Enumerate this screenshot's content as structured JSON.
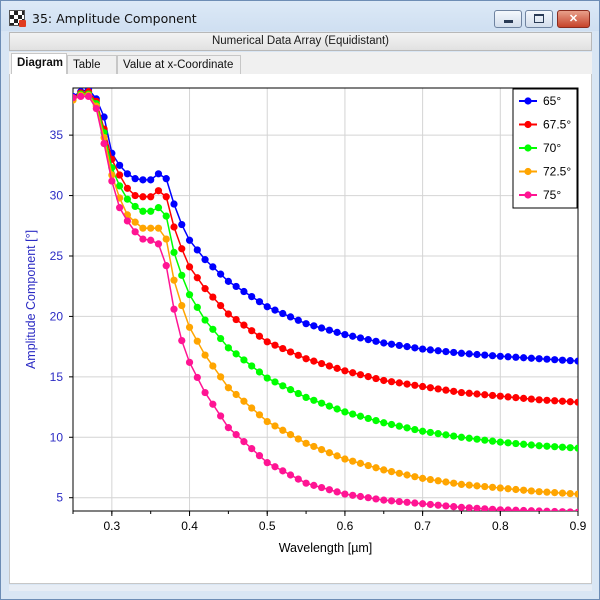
{
  "window": {
    "title": "35: Amplitude Component",
    "controls": {
      "minimize": "minimize",
      "maximize": "maximize",
      "close": "✕"
    }
  },
  "subheader": "Numerical Data Array (Equidistant)",
  "tabs": [
    {
      "label": "Diagram",
      "active": true
    },
    {
      "label": "Table",
      "active": false
    },
    {
      "label": "Value at x-Coordinate",
      "active": false
    }
  ],
  "chart_data": {
    "type": "line",
    "xlabel": "Wavelength [µm]",
    "ylabel": "Amplitude Component [°]",
    "xlim": [
      0.25,
      0.9
    ],
    "ylim": [
      3.9,
      38.9
    ],
    "xticks": [
      0.3,
      0.4,
      0.5,
      0.6,
      0.7,
      0.8,
      0.9
    ],
    "yticks": [
      5,
      10,
      15,
      20,
      25,
      30,
      35
    ],
    "grid": true,
    "legend_position": "top-right",
    "series": [
      {
        "name": "65°",
        "color": "#0000ff",
        "x": [
          0.25,
          0.26,
          0.27,
          0.28,
          0.29,
          0.3,
          0.31,
          0.32,
          0.33,
          0.34,
          0.35,
          0.36,
          0.37,
          0.38,
          0.39,
          0.4,
          0.42,
          0.45,
          0.5,
          0.55,
          0.6,
          0.65,
          0.7,
          0.75,
          0.8,
          0.85,
          0.9
        ],
        "y": [
          38.2,
          38.6,
          38.8,
          38.0,
          36.5,
          33.5,
          32.5,
          31.8,
          31.4,
          31.3,
          31.3,
          31.8,
          31.4,
          29.3,
          27.6,
          26.3,
          24.7,
          22.9,
          20.8,
          19.4,
          18.5,
          17.8,
          17.3,
          16.95,
          16.7,
          16.5,
          16.3
        ]
      },
      {
        "name": "67.5°",
        "color": "#ff0000",
        "x": [
          0.25,
          0.26,
          0.27,
          0.28,
          0.29,
          0.3,
          0.31,
          0.32,
          0.33,
          0.34,
          0.35,
          0.36,
          0.37,
          0.38,
          0.39,
          0.4,
          0.42,
          0.45,
          0.5,
          0.55,
          0.6,
          0.65,
          0.7,
          0.75,
          0.8,
          0.85,
          0.9
        ],
        "y": [
          38.1,
          38.5,
          38.6,
          37.8,
          35.5,
          33.0,
          31.7,
          30.6,
          30.0,
          29.9,
          29.9,
          30.4,
          29.9,
          27.4,
          25.6,
          24.1,
          22.3,
          20.2,
          17.9,
          16.5,
          15.5,
          14.7,
          14.2,
          13.7,
          13.4,
          13.1,
          12.9
        ]
      },
      {
        "name": "70°",
        "color": "#00ff00",
        "x": [
          0.25,
          0.26,
          0.27,
          0.28,
          0.29,
          0.3,
          0.31,
          0.32,
          0.33,
          0.34,
          0.35,
          0.36,
          0.37,
          0.38,
          0.39,
          0.4,
          0.42,
          0.45,
          0.5,
          0.55,
          0.6,
          0.65,
          0.7,
          0.75,
          0.8,
          0.85,
          0.9
        ],
        "y": [
          38.0,
          38.4,
          38.4,
          37.6,
          35.2,
          32.3,
          30.8,
          29.7,
          29.1,
          28.7,
          28.7,
          29.0,
          28.3,
          25.3,
          23.4,
          21.8,
          19.7,
          17.4,
          14.9,
          13.3,
          12.1,
          11.2,
          10.5,
          10.0,
          9.6,
          9.3,
          9.1
        ]
      },
      {
        "name": "72.5°",
        "color": "#ffa500",
        "x": [
          0.25,
          0.26,
          0.27,
          0.28,
          0.29,
          0.3,
          0.31,
          0.32,
          0.33,
          0.34,
          0.35,
          0.36,
          0.37,
          0.38,
          0.39,
          0.4,
          0.42,
          0.45,
          0.5,
          0.55,
          0.6,
          0.65,
          0.7,
          0.75,
          0.8,
          0.85,
          0.9
        ],
        "y": [
          37.9,
          38.3,
          38.3,
          37.4,
          34.8,
          31.7,
          29.8,
          28.4,
          27.8,
          27.3,
          27.3,
          27.3,
          26.4,
          23.0,
          20.9,
          19.1,
          16.8,
          14.1,
          11.3,
          9.5,
          8.2,
          7.3,
          6.6,
          6.1,
          5.8,
          5.5,
          5.3
        ]
      },
      {
        "name": "75°",
        "color": "#ff1493",
        "x": [
          0.25,
          0.26,
          0.27,
          0.28,
          0.29,
          0.3,
          0.31,
          0.32,
          0.33,
          0.34,
          0.35,
          0.36,
          0.37,
          0.38,
          0.39,
          0.4,
          0.42,
          0.45,
          0.5,
          0.55,
          0.6,
          0.65,
          0.7,
          0.75,
          0.8,
          0.85,
          0.9
        ],
        "y": [
          38.1,
          38.2,
          38.2,
          37.2,
          34.3,
          31.2,
          29.0,
          27.9,
          27.0,
          26.4,
          26.3,
          26.0,
          24.2,
          20.6,
          18.0,
          16.2,
          13.7,
          10.8,
          7.9,
          6.2,
          5.3,
          4.8,
          4.5,
          4.2,
          4.0,
          3.9,
          3.8
        ]
      }
    ]
  }
}
